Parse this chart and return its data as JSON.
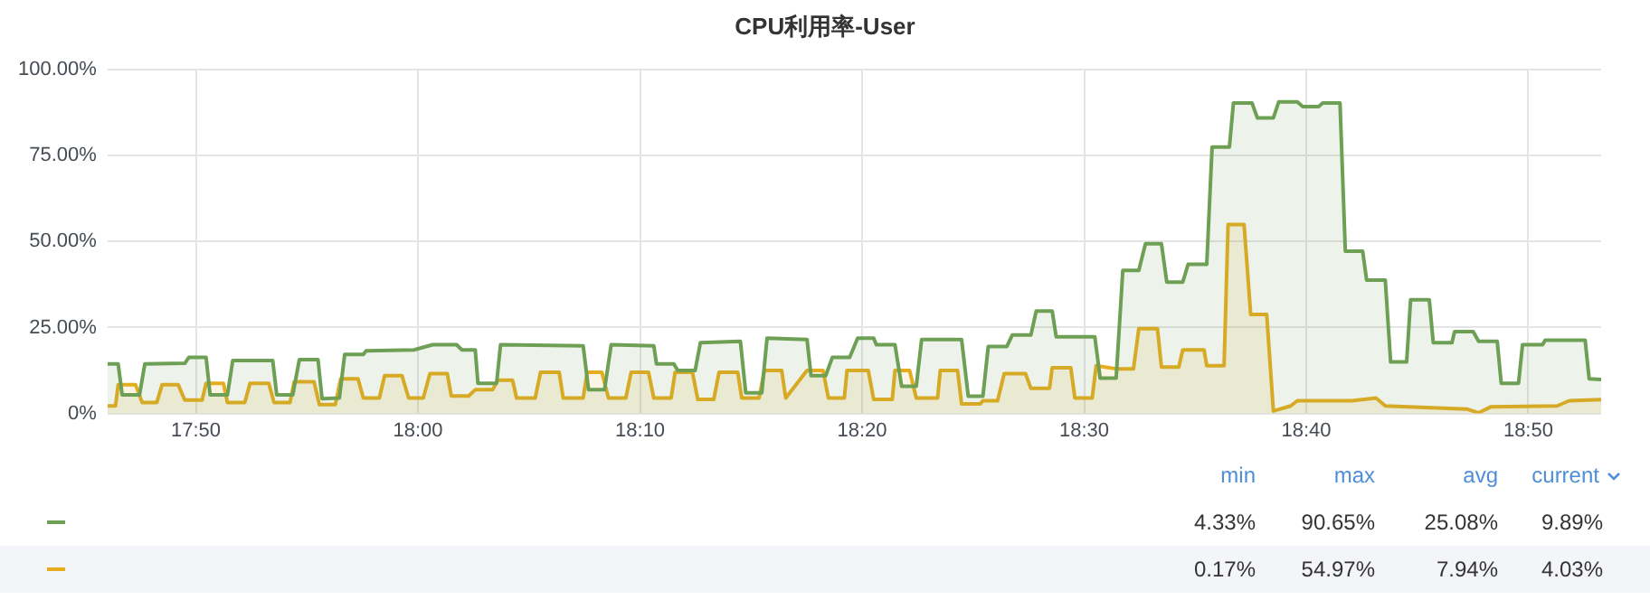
{
  "chart_data": {
    "type": "area",
    "title": "CPU利用率-User",
    "xlim": [
      17.767,
      18.888
    ],
    "xticks": [
      {
        "value": 17.8333,
        "label": "17:50"
      },
      {
        "value": 18,
        "label": "18:00"
      },
      {
        "value": 18.1667,
        "label": "18:10"
      },
      {
        "value": 18.3333,
        "label": "18:20"
      },
      {
        "value": 18.5,
        "label": "18:30"
      },
      {
        "value": 18.6667,
        "label": "18:40"
      },
      {
        "value": 18.8333,
        "label": "18:50"
      }
    ],
    "ylim": [
      0,
      100
    ],
    "yticks": [
      {
        "value": 0,
        "label": "0%"
      },
      {
        "value": 25,
        "label": "25.00%"
      },
      {
        "value": 50,
        "label": "50.00%"
      },
      {
        "value": 75,
        "label": "75.00%"
      },
      {
        "value": 100,
        "label": "100.00%"
      }
    ],
    "grid": true,
    "series": [
      {
        "color": "#6d9f54",
        "x": [
          17.767,
          17.775,
          17.778,
          17.791,
          17.795,
          17.825,
          17.828,
          17.841,
          17.844,
          17.857,
          17.861,
          17.891,
          17.894,
          17.906,
          17.911,
          17.925,
          17.928,
          17.941,
          17.945,
          17.959,
          17.961,
          17.997,
          18.011,
          18.029,
          18.033,
          18.043,
          18.045,
          18.059,
          18.062,
          18.124,
          18.128,
          18.14,
          18.145,
          18.177,
          18.179,
          18.192,
          18.195,
          18.208,
          18.212,
          18.242,
          18.246,
          18.258,
          18.262,
          18.292,
          18.295,
          18.306,
          18.311,
          18.324,
          18.33,
          18.342,
          18.344,
          18.358,
          18.363,
          18.374,
          18.378,
          18.408,
          18.413,
          18.424,
          18.428,
          18.442,
          18.446,
          18.46,
          18.464,
          18.476,
          18.479,
          18.508,
          18.512,
          18.524,
          18.529,
          18.541,
          18.546,
          18.558,
          18.562,
          18.574,
          18.578,
          18.592,
          18.596,
          18.609,
          18.612,
          18.626,
          18.63,
          18.642,
          18.646,
          18.66,
          18.664,
          18.676,
          18.679,
          18.692,
          18.696,
          18.709,
          18.712,
          18.726,
          18.73,
          18.742,
          18.745,
          18.759,
          18.762,
          18.776,
          18.778,
          18.792,
          18.796,
          18.81,
          18.813,
          18.826,
          18.829,
          18.844,
          18.846,
          18.876,
          18.879,
          18.888
        ],
        "values": [
          14.4,
          14.4,
          5.4,
          5.4,
          14.4,
          14.6,
          16.3,
          16.3,
          5.4,
          5.4,
          15.4,
          15.4,
          5.4,
          5.4,
          15.7,
          15.7,
          4.33,
          4.5,
          17.2,
          17.2,
          18.2,
          18.5,
          20,
          20,
          18.5,
          18.5,
          8.8,
          8.8,
          20,
          19.7,
          6.9,
          6.9,
          20,
          19.7,
          14.4,
          14.4,
          12.5,
          12.5,
          20.6,
          21,
          6,
          6,
          21.9,
          21.5,
          11,
          11,
          16.3,
          16.3,
          21.9,
          21.9,
          20,
          20,
          7.9,
          7.9,
          21.5,
          21.5,
          5,
          5,
          19.5,
          19.5,
          22.8,
          22.8,
          29.8,
          29.8,
          22.3,
          22.3,
          10.3,
          10.3,
          41.6,
          41.6,
          49.4,
          49.4,
          38.2,
          38.2,
          43.4,
          43.4,
          77.5,
          77.5,
          90.3,
          90.3,
          86,
          86,
          90.65,
          90.65,
          89.3,
          89.3,
          90.3,
          90.3,
          47.2,
          47.2,
          38.8,
          38.8,
          15,
          15,
          33.1,
          33.1,
          20.6,
          20.6,
          23.8,
          23.8,
          21,
          21,
          8.8,
          8.8,
          20,
          20,
          21.3,
          21.3,
          10.1,
          9.89
        ]
      },
      {
        "color": "#e5ac1e",
        "x": [
          17.767,
          17.773,
          17.775,
          17.788,
          17.793,
          17.804,
          17.808,
          17.82,
          17.825,
          17.838,
          17.841,
          17.854,
          17.857,
          17.87,
          17.874,
          17.888,
          17.892,
          17.904,
          17.907,
          17.922,
          17.926,
          17.938,
          17.942,
          17.955,
          17.959,
          17.971,
          17.975,
          17.988,
          17.993,
          18.004,
          18.009,
          18.022,
          18.025,
          18.038,
          18.043,
          18.056,
          18.06,
          18.071,
          18.074,
          18.088,
          18.092,
          18.106,
          18.109,
          18.124,
          18.127,
          18.138,
          18.143,
          18.156,
          18.16,
          18.173,
          18.177,
          18.19,
          18.193,
          18.206,
          18.21,
          18.222,
          18.226,
          18.24,
          18.243,
          18.256,
          18.26,
          18.273,
          18.276,
          18.292,
          18.304,
          18.308,
          18.32,
          18.322,
          18.338,
          18.342,
          18.356,
          18.358,
          18.369,
          18.374,
          18.39,
          18.392,
          18.405,
          18.408,
          18.422,
          18.424,
          18.435,
          18.44,
          18.456,
          18.46,
          18.474,
          18.476,
          18.49,
          18.493,
          18.506,
          18.509,
          18.524,
          18.537,
          18.541,
          18.555,
          18.558,
          18.571,
          18.574,
          18.59,
          18.592,
          18.605,
          18.608,
          18.62,
          18.625,
          18.637,
          18.642,
          18.655,
          18.66,
          18.701,
          18.719,
          18.726,
          18.787,
          18.796,
          18.805,
          18.855,
          18.864,
          18.888
        ],
        "values": [
          2.2,
          2.2,
          8.4,
          8.4,
          3.2,
          3.2,
          8.4,
          8.4,
          3.9,
          3.9,
          8.8,
          8.8,
          3.2,
          3.2,
          8.8,
          8.8,
          3.2,
          3.2,
          9.2,
          9.2,
          2.6,
          2.6,
          10.1,
          10.1,
          4.5,
          4.5,
          11,
          11,
          4.5,
          4.5,
          11.6,
          11.6,
          5.1,
          5.1,
          6.9,
          6.9,
          9.7,
          9.7,
          4.5,
          4.5,
          12,
          12,
          4.5,
          4.5,
          12,
          12,
          4.5,
          4.5,
          12,
          12,
          4.5,
          4.5,
          12,
          12,
          4.1,
          4.1,
          12,
          12,
          4.5,
          4.5,
          12.5,
          12.5,
          4.5,
          12.5,
          12.5,
          4.5,
          4.5,
          12.5,
          12.5,
          4.1,
          4.1,
          12.5,
          12.5,
          4.5,
          4.5,
          12.5,
          12.5,
          2.8,
          2.8,
          3.7,
          3.7,
          11.6,
          11.6,
          7.3,
          7.3,
          13.3,
          13.3,
          4.5,
          4.5,
          13.9,
          13,
          13,
          24.7,
          24.7,
          13.5,
          13.5,
          18.5,
          18.5,
          13.9,
          13.9,
          54.97,
          54.97,
          28.8,
          28.8,
          0.7,
          2.2,
          3.7,
          3.7,
          4.5,
          2.2,
          1.3,
          0.17,
          1.9,
          2.2,
          3.7,
          4.03
        ]
      }
    ],
    "annotations": [
      "min",
      "max",
      "avg",
      "current",
      "4.33%",
      "90.65%",
      "25.08%",
      "9.89%",
      "0.17%",
      "54.97%",
      "7.94%",
      "4.03%"
    ]
  }
}
